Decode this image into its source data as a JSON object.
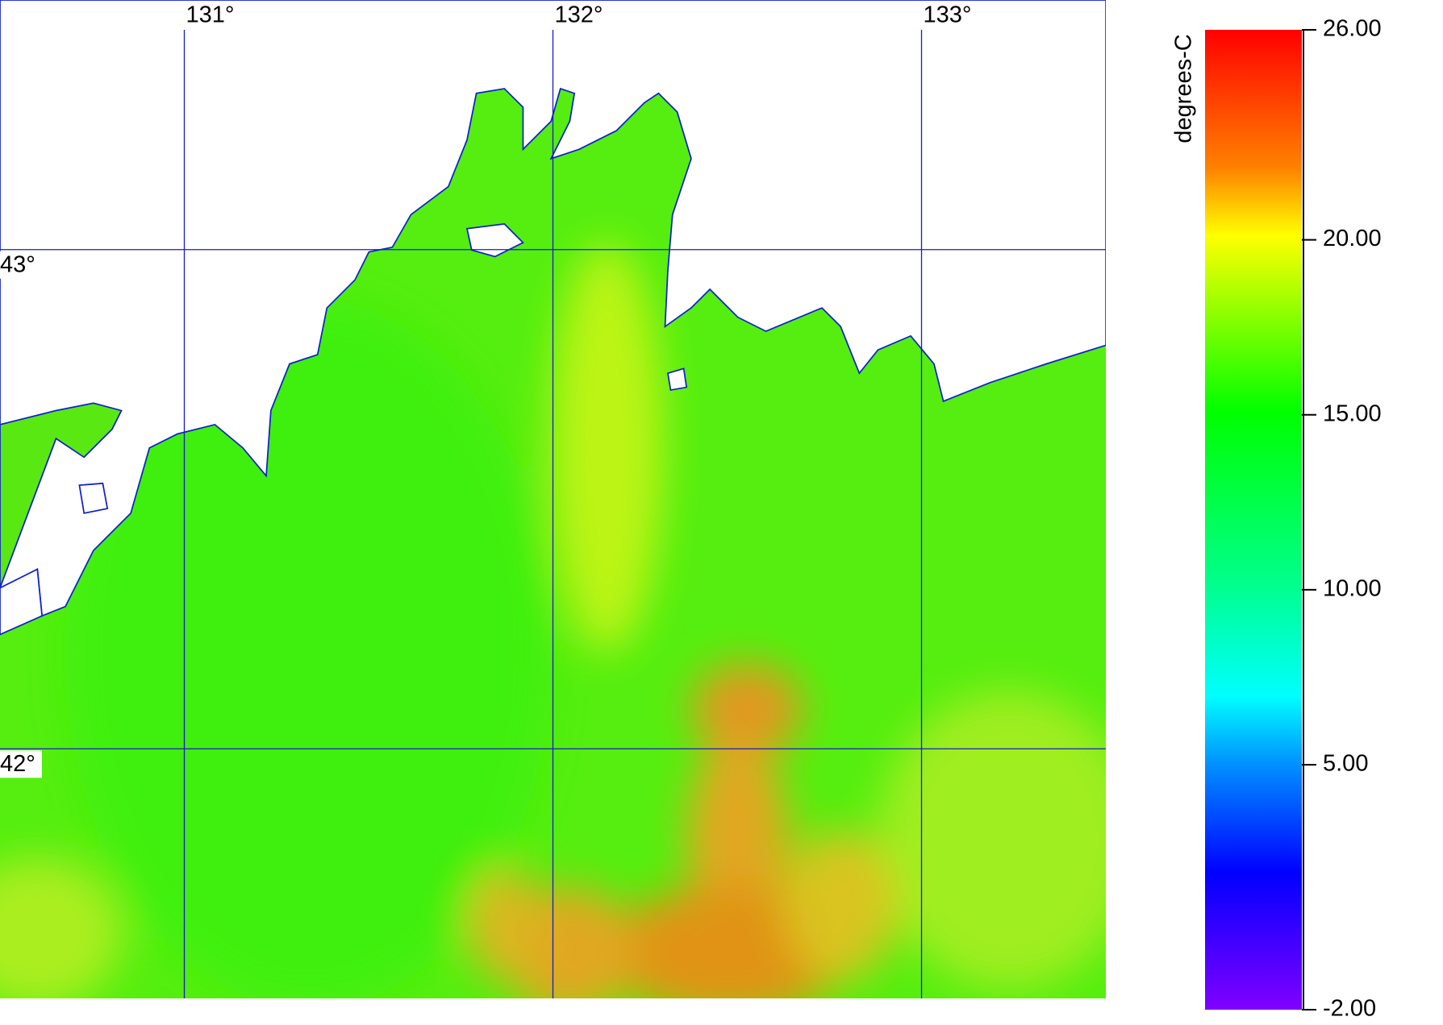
{
  "map": {
    "lon_range": [
      130.5,
      133.5
    ],
    "lat_range": [
      41.5,
      43.5
    ],
    "lon_ticks": [
      {
        "value": 131,
        "label": "131°"
      },
      {
        "value": 132,
        "label": "132°"
      },
      {
        "value": 133,
        "label": "133°"
      }
    ],
    "lat_ticks": [
      {
        "value": 43,
        "label": "43°"
      },
      {
        "value": 42,
        "label": "42°"
      }
    ]
  },
  "colorbar": {
    "label": "degrees-C",
    "range": [
      -2,
      26
    ],
    "ticks": [
      {
        "value": 26,
        "label": "26.00"
      },
      {
        "value": 20,
        "label": "20.00"
      },
      {
        "value": 15,
        "label": "15.00"
      },
      {
        "value": 10,
        "label": "10.00"
      },
      {
        "value": 5,
        "label": "5.00"
      },
      {
        "value": -2,
        "label": "-2.00"
      }
    ]
  }
}
